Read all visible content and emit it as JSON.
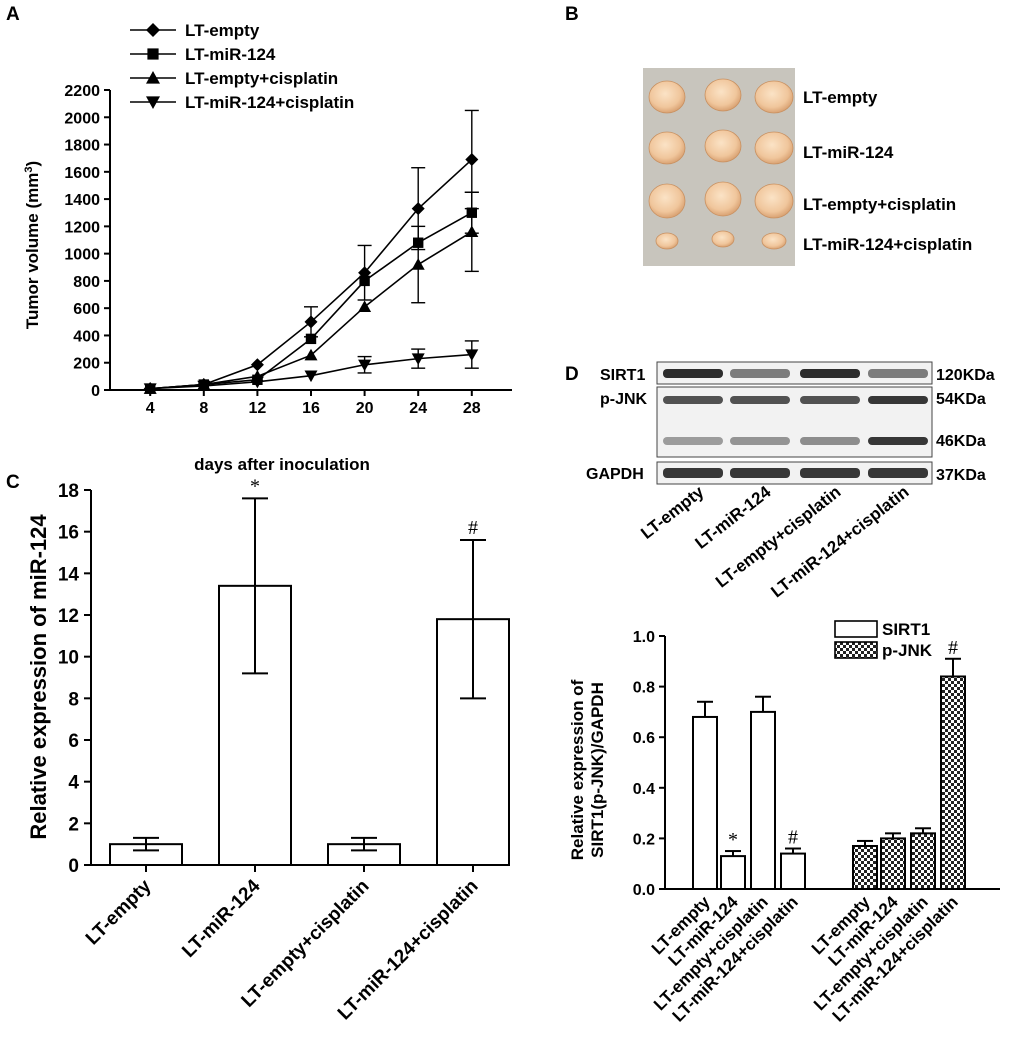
{
  "panels": {
    "a": "A",
    "b": "B",
    "c": "C",
    "d": "D"
  },
  "chart_data": [
    {
      "id": "A",
      "type": "line",
      "title": "",
      "xlabel": "days after inoculation",
      "ylabel": "Tumor volume (mm³)",
      "x": [
        4,
        8,
        12,
        16,
        20,
        24,
        28
      ],
      "xlim": [
        1,
        31
      ],
      "ylim": [
        0,
        2200
      ],
      "yticks": [
        0,
        200,
        400,
        600,
        800,
        1000,
        1200,
        1400,
        1600,
        1800,
        2000,
        2200
      ],
      "legend_position": "top-left",
      "series": [
        {
          "name": "LT-empty",
          "marker": "diamond",
          "values": [
            10,
            40,
            185,
            500,
            860,
            1330,
            1690
          ],
          "errors": [
            0,
            0,
            0,
            110,
            200,
            300,
            360
          ]
        },
        {
          "name": "LT-miR-124",
          "marker": "square",
          "values": [
            10,
            40,
            75,
            375,
            800,
            1080,
            1300
          ],
          "errors": [
            0,
            0,
            0,
            0,
            0,
            0,
            150
          ]
        },
        {
          "name": "LT-empty+cisplatin",
          "marker": "triangle-up",
          "values": [
            10,
            40,
            100,
            255,
            610,
            920,
            1160
          ],
          "errors": [
            0,
            0,
            0,
            0,
            0,
            280,
            290
          ]
        },
        {
          "name": "LT-miR-124+cisplatin",
          "marker": "triangle-down",
          "values": [
            10,
            30,
            60,
            105,
            185,
            230,
            260
          ],
          "errors": [
            0,
            0,
            0,
            0,
            60,
            70,
            100
          ]
        }
      ]
    },
    {
      "id": "C",
      "type": "bar",
      "title": "",
      "xlabel": "",
      "ylabel": "Relative expression of miR-124",
      "categories": [
        "LT-empty",
        "LT-miR-124",
        "LT-empty+cisplatin",
        "LT-miR-124+cisplatin"
      ],
      "values": [
        1.0,
        13.4,
        1.0,
        11.8
      ],
      "errors": [
        0.3,
        4.2,
        0.3,
        3.8
      ],
      "annotations": [
        "",
        "*",
        "",
        "#"
      ],
      "ylim": [
        0,
        18
      ],
      "yticks": [
        0,
        2,
        4,
        6,
        8,
        10,
        12,
        14,
        16,
        18
      ]
    },
    {
      "id": "D",
      "type": "bar",
      "title": "",
      "xlabel": "",
      "ylabel": "Relative expression of SIRT1(p-JNK)/GAPDH",
      "categories": [
        "LT-empty",
        "LT-miR-124",
        "LT-empty+cisplatin",
        "LT-miR-124+cisplatin"
      ],
      "ylim": [
        0,
        1.0
      ],
      "yticks": [
        0.0,
        0.2,
        0.4,
        0.6,
        0.8,
        1.0
      ],
      "legend_position": "top-right",
      "series": [
        {
          "name": "SIRT1",
          "pattern": "open",
          "values": [
            0.68,
            0.13,
            0.7,
            0.14
          ],
          "errors": [
            0.06,
            0.02,
            0.06,
            0.02
          ],
          "annotations": [
            "",
            "*",
            "",
            "#"
          ]
        },
        {
          "name": "p-JNK",
          "pattern": "checkered",
          "values": [
            0.17,
            0.2,
            0.22,
            0.84
          ],
          "errors": [
            0.02,
            0.02,
            0.02,
            0.07
          ],
          "annotations": [
            "",
            "",
            "",
            "#"
          ]
        }
      ]
    }
  ],
  "panelB": {
    "labels": [
      "LT-empty",
      "LT-miR-124",
      "LT-empty+cisplatin",
      "LT-miR-124+cisplatin"
    ],
    "tumor_color": "#f0c69c",
    "background_color": "#c8c5bd"
  },
  "blot": {
    "rows": [
      {
        "name": "SIRT1",
        "size": "120KDa"
      },
      {
        "name": "p-JNK",
        "size": "54KDa"
      },
      {
        "name": "",
        "size": "46KDa"
      },
      {
        "name": "GAPDH",
        "size": "37KDa"
      }
    ],
    "lanes": [
      "LT-empty",
      "LT-miR-124",
      "LT-empty+cisplatin",
      "LT-miR-124+cisplatin"
    ]
  }
}
